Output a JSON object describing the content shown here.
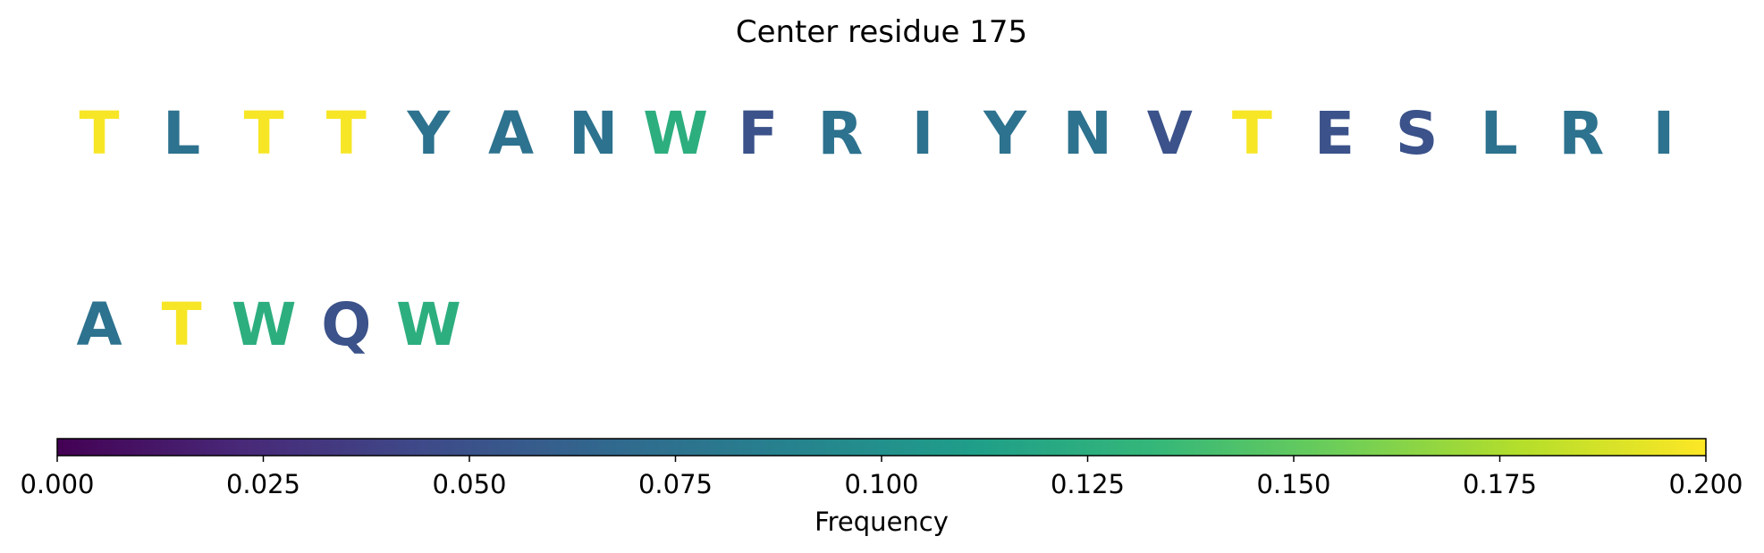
{
  "chart_data": {
    "type": "sequence-logo",
    "title": "Center residue 175",
    "residues": [
      {
        "letter": "T",
        "frequency": 0.198
      },
      {
        "letter": "L",
        "frequency": 0.075
      },
      {
        "letter": "T",
        "frequency": 0.198
      },
      {
        "letter": "T",
        "frequency": 0.198
      },
      {
        "letter": "Y",
        "frequency": 0.075
      },
      {
        "letter": "A",
        "frequency": 0.075
      },
      {
        "letter": "N",
        "frequency": 0.075
      },
      {
        "letter": "W",
        "frequency": 0.125
      },
      {
        "letter": "F",
        "frequency": 0.05
      },
      {
        "letter": "R",
        "frequency": 0.075
      },
      {
        "letter": "I",
        "frequency": 0.075
      },
      {
        "letter": "Y",
        "frequency": 0.075
      },
      {
        "letter": "N",
        "frequency": 0.075
      },
      {
        "letter": "V",
        "frequency": 0.05
      },
      {
        "letter": "T",
        "frequency": 0.198
      },
      {
        "letter": "E",
        "frequency": 0.05
      },
      {
        "letter": "S",
        "frequency": 0.05
      },
      {
        "letter": "L",
        "frequency": 0.075
      },
      {
        "letter": "R",
        "frequency": 0.075
      },
      {
        "letter": "I",
        "frequency": 0.075
      },
      {
        "letter": "A",
        "frequency": 0.075
      },
      {
        "letter": "T",
        "frequency": 0.198
      },
      {
        "letter": "W",
        "frequency": 0.125
      },
      {
        "letter": "Q",
        "frequency": 0.05
      },
      {
        "letter": "W",
        "frequency": 0.125
      }
    ],
    "colorbar": {
      "label": "Frequency",
      "range": [
        0,
        0.2
      ],
      "ticks": [
        0,
        0.025,
        0.05,
        0.075,
        0.1,
        0.125,
        0.15,
        0.175,
        0.2
      ],
      "tick_labels": [
        "0.000",
        "0.025",
        "0.050",
        "0.075",
        "0.100",
        "0.125",
        "0.150",
        "0.175",
        "0.200"
      ],
      "colormap": "viridis",
      "colormap_stops": [
        "#440154",
        "#482878",
        "#3e4a89",
        "#31688e",
        "#26828e",
        "#1f9e89",
        "#35b779",
        "#6ece58",
        "#b5de2b",
        "#fde725"
      ]
    }
  }
}
